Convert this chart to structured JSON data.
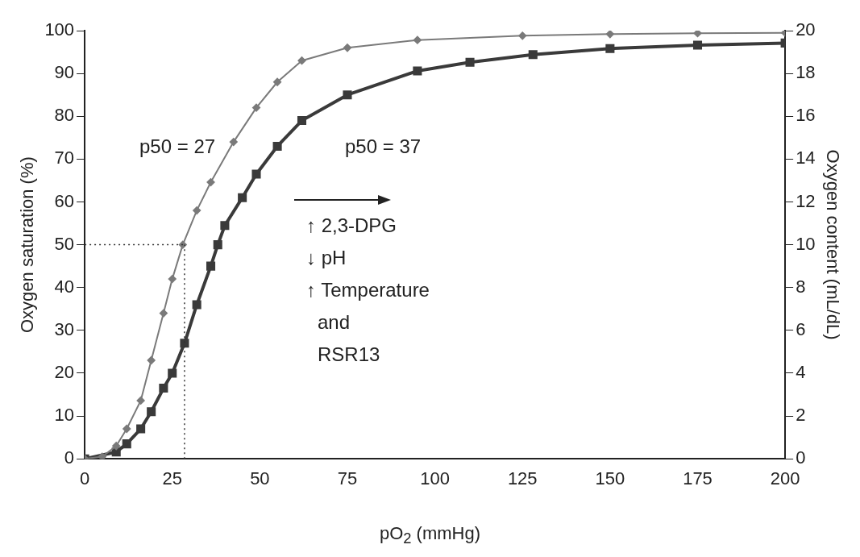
{
  "chart_data": {
    "type": "line",
    "xlabel": "pO$_{2}$ (mmHg)",
    "ylabel": "Oxygen saturation (%)",
    "y2label": "Oxygen content (mL/dL)",
    "xlim": [
      0,
      200
    ],
    "xticks": [
      0,
      25,
      50,
      75,
      100,
      125,
      150,
      175,
      200
    ],
    "ylim": [
      0,
      100
    ],
    "yticks": [
      0,
      10,
      20,
      30,
      40,
      50,
      60,
      70,
      80,
      90,
      100
    ],
    "y2lim": [
      0,
      20
    ],
    "y2ticks": [
      0,
      2,
      4,
      6,
      8,
      10,
      12,
      14,
      16,
      18,
      20
    ],
    "grid": false,
    "legend": false,
    "line_style": "solid",
    "series": [
      {
        "color": "#7a7a7a",
        "marker": "diamond",
        "x": [
          0,
          5,
          9,
          12,
          16,
          19,
          22.5,
          25,
          28,
          32,
          36,
          42.5,
          49,
          55,
          62,
          75,
          95,
          125,
          150,
          175,
          200
        ],
        "values": [
          0,
          0.5,
          3,
          7,
          13.6,
          23,
          34,
          42,
          50,
          58,
          64.6,
          74,
          82,
          88,
          93,
          96,
          97.8,
          98.8,
          99.2,
          99.4,
          99.5
        ]
      },
      {
        "color": "#3a3a3a",
        "marker": "square",
        "x": [
          0,
          9,
          12,
          16,
          19,
          22.5,
          25,
          28.5,
          32,
          36,
          38,
          40,
          45,
          49,
          55,
          62,
          75,
          95,
          110,
          128,
          150,
          175,
          200
        ],
        "values": [
          0,
          1.6,
          3.5,
          7,
          11,
          16.5,
          20,
          27,
          36,
          45,
          50,
          54.5,
          61,
          66.5,
          73,
          79,
          85,
          90.6,
          92.6,
          94.4,
          95.8,
          96.6,
          97.1
        ]
      }
    ],
    "ref_lines": [
      {
        "axis": "y",
        "value": 50,
        "line_style": "dotted",
        "color": "#333333"
      },
      {
        "axis": "x",
        "value": 28.5,
        "line_style": "dotted",
        "color": "#333333"
      }
    ],
    "annotations": [
      "p50 = 27",
      "p50 = 37",
      "↑ 2,3-DPG",
      "↓ pH",
      "↑ Temperature",
      "and",
      "RSR13"
    ]
  }
}
